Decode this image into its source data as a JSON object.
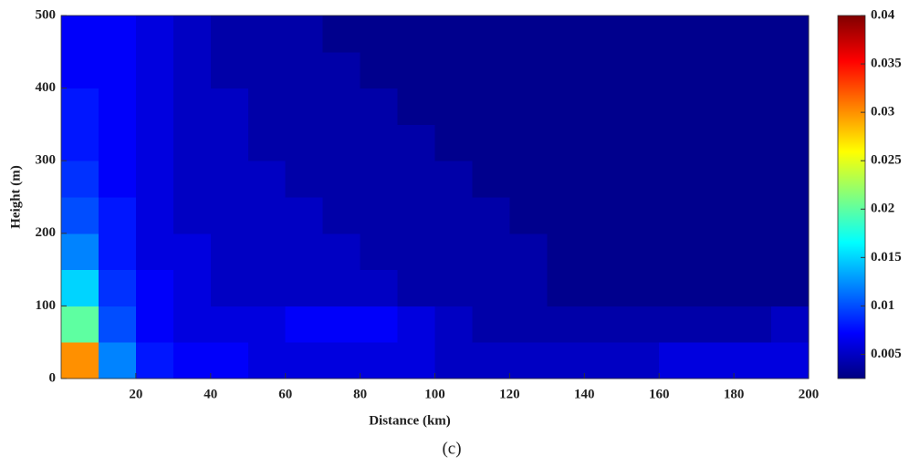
{
  "chart_data": {
    "type": "heatmap",
    "xlabel": "Distance (km)",
    "ylabel": "Height (m)",
    "caption": "(c)",
    "x_bins": [
      0,
      10,
      20,
      30,
      40,
      50,
      60,
      70,
      80,
      90,
      100,
      110,
      120,
      130,
      140,
      150,
      160,
      170,
      180,
      190,
      200
    ],
    "y_bins": [
      0,
      50,
      100,
      150,
      200,
      250,
      300,
      350,
      400,
      450,
      500
    ],
    "values": [
      [
        0.03,
        0.012,
        0.008,
        0.007,
        0.007,
        0.006,
        0.006,
        0.006,
        0.006,
        0.006,
        0.005,
        0.005,
        0.005,
        0.005,
        0.005,
        0.005,
        0.006,
        0.006,
        0.006,
        0.006
      ],
      [
        0.02,
        0.01,
        0.007,
        0.006,
        0.006,
        0.006,
        0.007,
        0.007,
        0.007,
        0.006,
        0.005,
        0.004,
        0.004,
        0.004,
        0.004,
        0.004,
        0.004,
        0.004,
        0.004,
        0.005
      ],
      [
        0.015,
        0.009,
        0.007,
        0.006,
        0.005,
        0.005,
        0.005,
        0.005,
        0.005,
        0.004,
        0.004,
        0.004,
        0.004,
        0.003,
        0.003,
        0.003,
        0.003,
        0.003,
        0.003,
        0.003
      ],
      [
        0.012,
        0.008,
        0.006,
        0.006,
        0.005,
        0.005,
        0.005,
        0.005,
        0.004,
        0.004,
        0.004,
        0.004,
        0.004,
        0.003,
        0.003,
        0.003,
        0.003,
        0.003,
        0.003,
        0.003
      ],
      [
        0.01,
        0.008,
        0.006,
        0.005,
        0.005,
        0.005,
        0.005,
        0.004,
        0.004,
        0.004,
        0.004,
        0.004,
        0.003,
        0.003,
        0.003,
        0.003,
        0.003,
        0.003,
        0.003,
        0.003
      ],
      [
        0.009,
        0.007,
        0.006,
        0.005,
        0.005,
        0.005,
        0.004,
        0.004,
        0.004,
        0.004,
        0.004,
        0.003,
        0.003,
        0.003,
        0.003,
        0.003,
        0.003,
        0.003,
        0.003,
        0.003
      ],
      [
        0.008,
        0.007,
        0.006,
        0.005,
        0.005,
        0.004,
        0.004,
        0.004,
        0.004,
        0.004,
        0.003,
        0.003,
        0.003,
        0.003,
        0.003,
        0.003,
        0.003,
        0.003,
        0.003,
        0.003
      ],
      [
        0.008,
        0.007,
        0.006,
        0.005,
        0.005,
        0.004,
        0.004,
        0.004,
        0.004,
        0.003,
        0.003,
        0.003,
        0.003,
        0.003,
        0.003,
        0.003,
        0.003,
        0.003,
        0.003,
        0.003
      ],
      [
        0.007,
        0.007,
        0.006,
        0.005,
        0.004,
        0.004,
        0.004,
        0.004,
        0.003,
        0.003,
        0.003,
        0.003,
        0.003,
        0.003,
        0.003,
        0.003,
        0.003,
        0.003,
        0.003,
        0.003
      ],
      [
        0.007,
        0.007,
        0.006,
        0.005,
        0.004,
        0.004,
        0.004,
        0.003,
        0.003,
        0.003,
        0.003,
        0.003,
        0.003,
        0.003,
        0.003,
        0.003,
        0.003,
        0.003,
        0.003,
        0.003
      ]
    ],
    "xlim": [
      0,
      200
    ],
    "xticks": [
      20,
      40,
      60,
      80,
      100,
      120,
      140,
      160,
      180,
      200
    ],
    "ylim": [
      0,
      500
    ],
    "yticks": [
      0,
      100,
      200,
      300,
      400,
      500
    ],
    "clim": [
      0.0025,
      0.04
    ],
    "cticks": [
      0.005,
      0.01,
      0.015,
      0.02,
      0.025,
      0.03,
      0.035,
      0.04
    ],
    "colormap": "jet"
  }
}
